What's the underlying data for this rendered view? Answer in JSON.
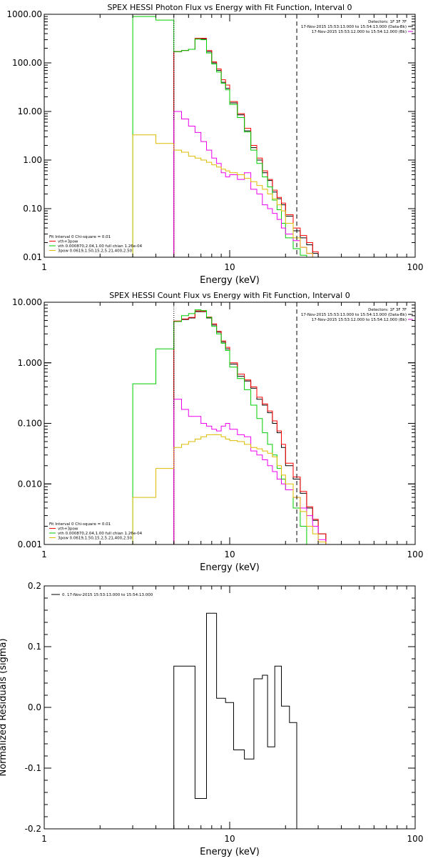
{
  "chart_data": [
    {
      "type": "line",
      "title": "SPEX HESSI Photon Flux vs Energy with Fit Function, Interval 0",
      "xlabel": "Energy (keV)",
      "ylabel": "",
      "xscale": "log",
      "yscale": "log",
      "xlim": [
        1,
        100
      ],
      "ylim": [
        0.01,
        1000
      ],
      "xticks": [
        "1",
        "10",
        "100"
      ],
      "yticks": [
        "0.01",
        "0.10",
        "1.00",
        "10.00",
        "100.00",
        "1000.00"
      ],
      "corner_text": [
        "Detectors: 1F 3F 7F",
        "17-Nov-2015 15:53:13.000 to 15:54:13.000 (Data-Bk)",
        "17-Nov-2015 15:53:12.000 to 15:54:12.000 (Bk)"
      ],
      "legend": [
        "Fit Interval 0   Chi-square = 0.01",
        "vth+3pow",
        "vth 0.000870,2.04,1.00   full chian 1.26e-04",
        "3pow 0.0619,1.50,15.2,5.21,400,2.50"
      ],
      "vlines": [
        5,
        23
      ],
      "edges": [
        3,
        4,
        5,
        5.5,
        6,
        6.5,
        7,
        7.5,
        8,
        8.5,
        9,
        9.5,
        10,
        11,
        12,
        13,
        14,
        15,
        16,
        17,
        18,
        19,
        20,
        22,
        24,
        26,
        28,
        30
      ],
      "series": [
        {
          "color": "#000000",
          "values": [
            null,
            null,
            170,
            180,
            190,
            310,
            310,
            170,
            100,
            70,
            40,
            30,
            15,
            8.5,
            4,
            1.8,
            1.0,
            0.55,
            0.38,
            0.22,
            0.16,
            0.12,
            0.07,
            0.035,
            0.025,
            0.018,
            0.012
          ]
        },
        {
          "color": "#ff0000",
          "values": [
            null,
            null,
            170,
            180,
            190,
            320,
            320,
            180,
            105,
            75,
            45,
            35,
            16,
            9,
            4.5,
            2,
            1.1,
            0.6,
            0.4,
            0.24,
            0.17,
            0.13,
            0.075,
            0.04,
            0.028,
            0.02,
            0.013
          ]
        },
        {
          "color": "#00cc00",
          "values": [
            900,
            760,
            170,
            180,
            190,
            310,
            300,
            160,
            95,
            65,
            38,
            28,
            14,
            7.5,
            3.8,
            1.6,
            0.85,
            0.45,
            0.28,
            0.15,
            0.095,
            0.05,
            0.025,
            0.015,
            0.011,
            null,
            null
          ]
        },
        {
          "color": "#ee00ee",
          "values": [
            null,
            null,
            10,
            7,
            5,
            3.7,
            2.4,
            1.6,
            1.1,
            0.85,
            0.55,
            0.45,
            0.5,
            0.4,
            0.55,
            0.25,
            0.2,
            0.12,
            0.1,
            0.08,
            0.06,
            0.04,
            0.03,
            0.022,
            0.016,
            0.012,
            null
          ]
        },
        {
          "color": "#ddbb00",
          "values": [
            3.3,
            2.2,
            1.6,
            1.45,
            1.2,
            1.1,
            1.0,
            0.9,
            0.8,
            0.72,
            0.65,
            0.6,
            0.55,
            0.5,
            0.42,
            0.36,
            0.3,
            0.25,
            0.2,
            0.16,
            0.12,
            0.09,
            0.05,
            0.025,
            0.016,
            0.012,
            0.01
          ]
        }
      ]
    },
    {
      "type": "line",
      "title": "SPEX HESSI Count Flux vs Energy with Fit Function, Interval 0",
      "xlabel": "Energy (keV)",
      "ylabel": "",
      "xscale": "log",
      "yscale": "log",
      "xlim": [
        1,
        100
      ],
      "ylim": [
        0.001,
        10
      ],
      "xticks": [
        "1",
        "10",
        "100"
      ],
      "yticks": [
        "0.001",
        "0.010",
        "0.100",
        "1.000",
        "10.000"
      ],
      "corner_text": [
        "Detectors: 1F 3F 7F",
        "17-Nov-2015 15:53:13.000 to 15:54:13.000 (Data-Bk)",
        "17-Nov-2015 15:53:12.000 to 15:54:12.000 (Bk)"
      ],
      "legend": [
        "Fit Interval 0   Chi-square = 0.01",
        "vth+3pow",
        "vth 0.000870,2.04,1.00   full chian 1.26e-04",
        "3pow 0.0619,1.50,15.2,5.21,400,2.50"
      ],
      "vlines": [
        5,
        23
      ],
      "edges": [
        3,
        4,
        5,
        5.5,
        6,
        6.5,
        7,
        7.5,
        8,
        8.5,
        9,
        9.5,
        10,
        11,
        12,
        13,
        14,
        15,
        16,
        17,
        18,
        19,
        20,
        22,
        24,
        26,
        28,
        30,
        33
      ],
      "series": [
        {
          "color": "#000000",
          "values": [
            null,
            null,
            4.8,
            5.2,
            5.5,
            7,
            7,
            5.5,
            4.2,
            3.2,
            2.2,
            1.7,
            0.95,
            0.6,
            0.5,
            0.38,
            0.25,
            0.2,
            0.15,
            0.1,
            0.07,
            0.04,
            0.02,
            0.012,
            0.007,
            0.004,
            0.0025,
            0.0015
          ]
        },
        {
          "color": "#ff0000",
          "values": [
            null,
            null,
            4.9,
            5.3,
            5.6,
            7.2,
            7.1,
            5.7,
            4.4,
            3.3,
            2.3,
            1.8,
            1.0,
            0.65,
            0.52,
            0.4,
            0.27,
            0.21,
            0.16,
            0.11,
            0.075,
            0.045,
            0.022,
            0.013,
            0.0075,
            0.0042,
            0.0026,
            0.0015
          ]
        },
        {
          "color": "#00cc00",
          "values": [
            0.45,
            1.7,
            4.8,
            6.0,
            6.5,
            7.5,
            7.3,
            5.6,
            4.0,
            3.0,
            2.1,
            1.6,
            0.85,
            0.55,
            0.36,
            0.2,
            0.12,
            0.07,
            0.045,
            0.03,
            0.018,
            0.012,
            0.008,
            0.004,
            0.002,
            0.001,
            null,
            null
          ]
        },
        {
          "color": "#ee00ee",
          "values": [
            null,
            null,
            0.25,
            0.17,
            0.13,
            0.13,
            0.1,
            0.09,
            0.08,
            0.075,
            0.09,
            0.1,
            0.08,
            0.065,
            0.06,
            0.035,
            0.03,
            0.025,
            0.02,
            0.016,
            0.012,
            0.01,
            0.008,
            0.006,
            0.004,
            0.003,
            0.002,
            0.0012
          ]
        },
        {
          "color": "#ddbb00",
          "values": [
            0.006,
            0.018,
            0.04,
            0.045,
            0.05,
            0.055,
            0.06,
            0.065,
            0.065,
            0.065,
            0.06,
            0.055,
            0.052,
            0.05,
            0.045,
            0.04,
            0.038,
            0.035,
            0.032,
            0.028,
            0.02,
            0.014,
            0.01,
            0.006,
            0.0035,
            0.002,
            0.0015,
            0.0011
          ]
        }
      ]
    },
    {
      "type": "line",
      "title": "",
      "xlabel": "Energy (keV)",
      "ylabel": "Normalized Residuals (sigma)",
      "xscale": "log",
      "yscale": "linear",
      "xlim": [
        1,
        100
      ],
      "ylim": [
        -0.2,
        0.2
      ],
      "xticks": [
        "1",
        "10",
        "100"
      ],
      "yticks": [
        "-0.2",
        "-0.1",
        "0.0",
        "0.1",
        "0.2"
      ],
      "legend": [
        "0. 17-Nov-2015 15:53:13.000 to 15:54:13.000"
      ],
      "edges": [
        5,
        6.5,
        7.5,
        8.5,
        9.5,
        10.5,
        12,
        13.5,
        15,
        16,
        17.5,
        19,
        21,
        23
      ],
      "series": [
        {
          "color": "#000000",
          "values": [
            0.068,
            -0.15,
            0.155,
            0.015,
            0.008,
            -0.07,
            -0.085,
            0.047,
            0.053,
            -0.065,
            0.068,
            0.002,
            -0.025
          ]
        }
      ]
    }
  ]
}
